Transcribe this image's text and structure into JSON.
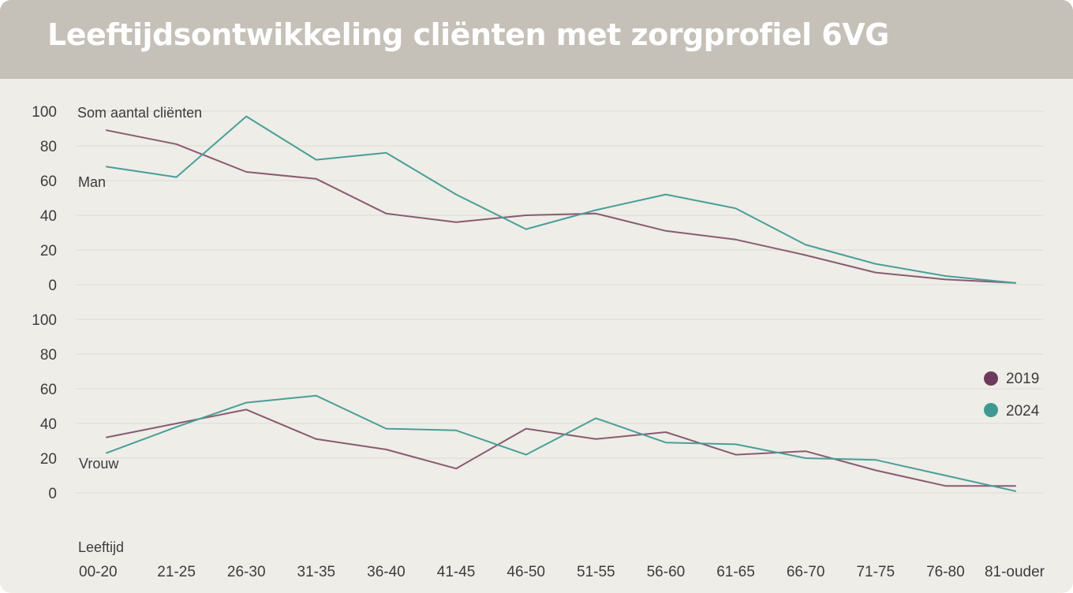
{
  "title": "Leeftijdsontwikkeling cliënten met zorgprofiel 6VG",
  "colors": {
    "2019": "#8a5a72",
    "2024": "#4a9e98",
    "legend_2019": "#6e3a5c",
    "legend_2024": "#3f9993",
    "header": "#c5c0b8"
  },
  "chart_data": [
    {
      "type": "line",
      "panel_label": "Man",
      "ylabel": "Som aantal cliënten",
      "xlabel": "Leeftijd",
      "ylim": [
        0,
        100
      ],
      "yticks": [
        0,
        20,
        40,
        60,
        80,
        100
      ],
      "categories": [
        "00-20",
        "21-25",
        "26-30",
        "31-35",
        "36-40",
        "41-45",
        "46-50",
        "51-55",
        "56-60",
        "61-65",
        "66-70",
        "71-75",
        "76-80",
        "81-ouder"
      ],
      "series": [
        {
          "name": "2019",
          "values": [
            89,
            81,
            65,
            61,
            41,
            36,
            40,
            41,
            31,
            26,
            17,
            7,
            3,
            1
          ]
        },
        {
          "name": "2024",
          "values": [
            68,
            62,
            97,
            72,
            76,
            52,
            32,
            43,
            52,
            44,
            23,
            12,
            5,
            1
          ]
        }
      ]
    },
    {
      "type": "line",
      "panel_label": "Vrouw",
      "xlabel": "Leeftijd",
      "ylim": [
        0,
        100
      ],
      "yticks": [
        0,
        20,
        40,
        60,
        80,
        100
      ],
      "categories": [
        "00-20",
        "21-25",
        "26-30",
        "31-35",
        "36-40",
        "41-45",
        "46-50",
        "51-55",
        "56-60",
        "61-65",
        "66-70",
        "71-75",
        "76-80",
        "81-ouder"
      ],
      "series": [
        {
          "name": "2019",
          "values": [
            32,
            40,
            48,
            31,
            25,
            14,
            37,
            31,
            35,
            22,
            24,
            13,
            4,
            4
          ]
        },
        {
          "name": "2024",
          "values": [
            23,
            38,
            52,
            56,
            37,
            36,
            22,
            43,
            29,
            28,
            20,
            19,
            10,
            1
          ]
        }
      ]
    }
  ],
  "legend": [
    {
      "label": "2019"
    },
    {
      "label": "2024"
    }
  ]
}
